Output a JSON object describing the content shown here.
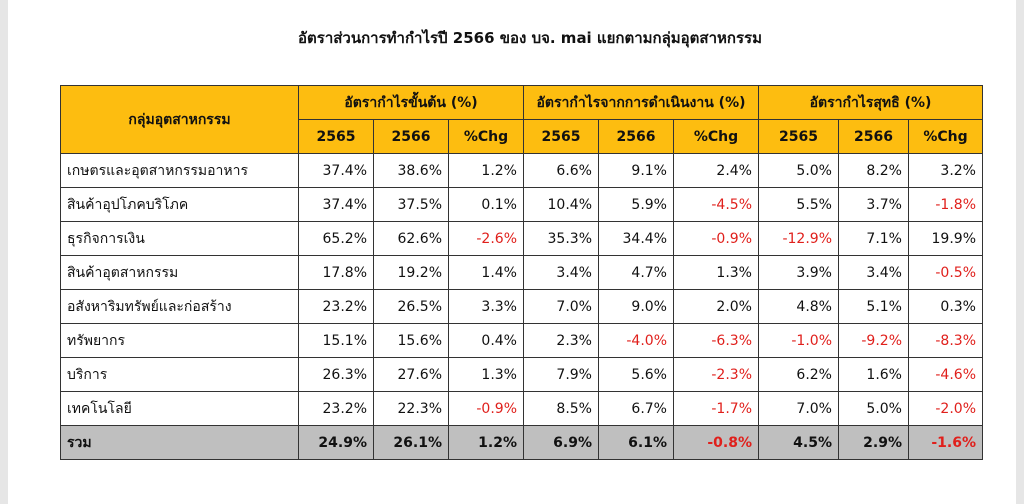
{
  "title": "อัตราส่วนการทำกำไรปี 2566 ของ บจ. mai แยกตามกลุ่มอุตสาหกรรม",
  "table": {
    "corner": "กลุ่มอุตสาหกรรม",
    "groups": [
      "อัตรากำไรขั้นต้น (%)",
      "อัตรากำไรจากการดำเนินงาน (%)",
      "อัตรากำไรสุทธิ (%)"
    ],
    "subheaders": [
      "2565",
      "2566",
      "%Chg",
      "2565",
      "2566",
      "%Chg",
      "2565",
      "2566",
      "%Chg"
    ],
    "rows": [
      [
        "เกษตรและอุตสาหกรรมอาหาร",
        "37.4%",
        "38.6%",
        "1.2%",
        "6.6%",
        "9.1%",
        "2.4%",
        "5.0%",
        "8.2%",
        "3.2%"
      ],
      [
        "สินค้าอุปโภคบริโภค",
        "37.4%",
        "37.5%",
        "0.1%",
        "10.4%",
        "5.9%",
        "-4.5%",
        "5.5%",
        "3.7%",
        "-1.8%"
      ],
      [
        "ธุรกิจการเงิน",
        "65.2%",
        "62.6%",
        "-2.6%",
        "35.3%",
        "34.4%",
        "-0.9%",
        "-12.9%",
        "7.1%",
        "19.9%"
      ],
      [
        "สินค้าอุตสาหกรรม",
        "17.8%",
        "19.2%",
        "1.4%",
        "3.4%",
        "4.7%",
        "1.3%",
        "3.9%",
        "3.4%",
        "-0.5%"
      ],
      [
        "อสังหาริมทรัพย์และก่อสร้าง",
        "23.2%",
        "26.5%",
        "3.3%",
        "7.0%",
        "9.0%",
        "2.0%",
        "4.8%",
        "5.1%",
        "0.3%"
      ],
      [
        "ทรัพยากร",
        "15.1%",
        "15.6%",
        "0.4%",
        "2.3%",
        "-4.0%",
        "-6.3%",
        "-1.0%",
        "-9.2%",
        "-8.3%"
      ],
      [
        "บริการ",
        "26.3%",
        "27.6%",
        "1.3%",
        "7.9%",
        "5.6%",
        "-2.3%",
        "6.2%",
        "1.6%",
        "-4.6%"
      ],
      [
        "เทคโนโลยี",
        "23.2%",
        "22.3%",
        "-0.9%",
        "8.5%",
        "6.7%",
        "-1.7%",
        "7.0%",
        "5.0%",
        "-2.0%"
      ]
    ],
    "total": [
      "รวม",
      "24.9%",
      "26.1%",
      "1.2%",
      "6.9%",
      "6.1%",
      "-0.8%",
      "4.5%",
      "2.9%",
      "-1.6%"
    ]
  }
}
